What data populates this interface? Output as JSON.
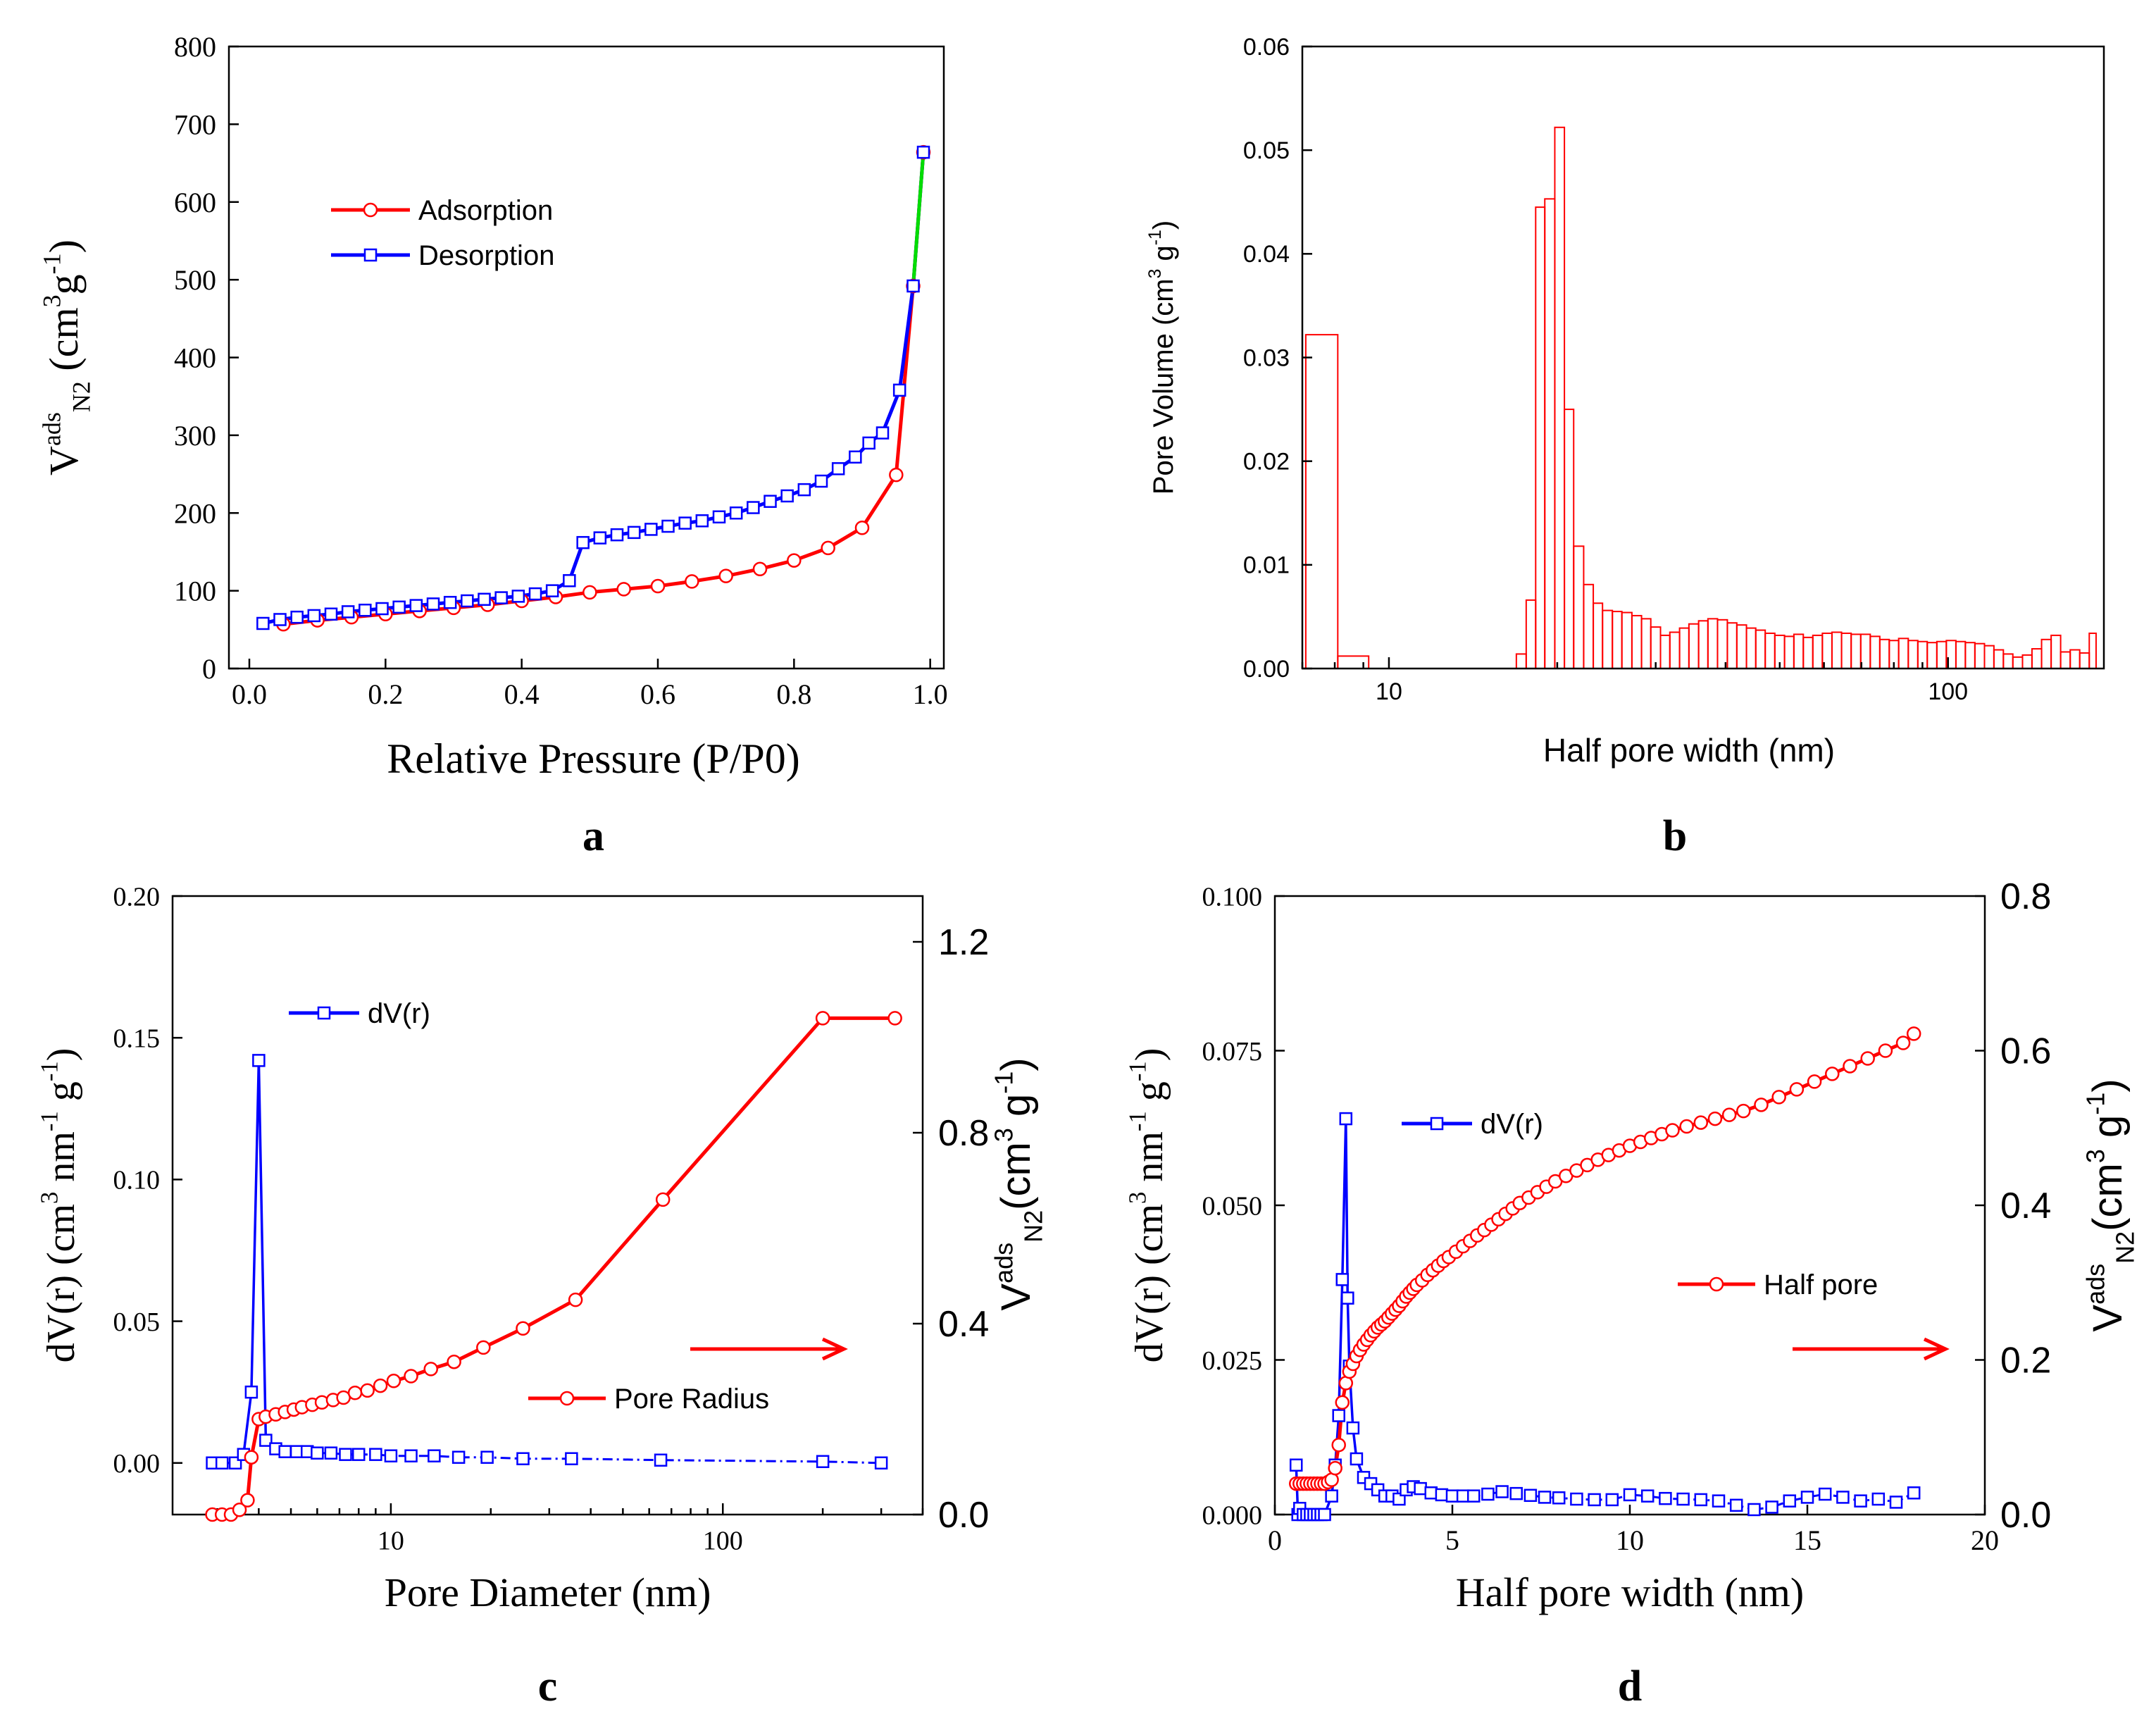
{
  "chart_data": [
    {
      "panel": "a",
      "type": "line",
      "panel_label": "a",
      "xlabel": "Relative Pressure (P/P0)",
      "ylabel": {
        "main": "V",
        "sup": "ads",
        "sub": "N",
        "sub2": "2",
        "unit_open": " (cm",
        "unit_sup": "3",
        "unit_mid": "g",
        "unit_sup2": "-1",
        "unit_close": ")"
      },
      "xlim": [
        -0.03,
        1.02
      ],
      "ylim": [
        0,
        800
      ],
      "xticks": [
        "0.0",
        "0.2",
        "0.4",
        "0.6",
        "0.8",
        "1.0"
      ],
      "yticks": [
        "0",
        "100",
        "200",
        "300",
        "400",
        "500",
        "600",
        "700",
        "800"
      ],
      "legend_position": "upper-left",
      "series": [
        {
          "name": "Adsorption",
          "color": "#ff0000",
          "marker": "circle",
          "x": [
            0.05,
            0.1,
            0.15,
            0.2,
            0.25,
            0.3,
            0.35,
            0.4,
            0.45,
            0.5,
            0.55,
            0.6,
            0.65,
            0.7,
            0.75,
            0.8,
            0.85,
            0.9,
            0.95,
            0.975,
            0.99
          ],
          "y": [
            57,
            62,
            66,
            70,
            74,
            78,
            82,
            87,
            92,
            98,
            102,
            106,
            112,
            119,
            128,
            139,
            155,
            181,
            249,
            492,
            664
          ]
        },
        {
          "name": "Desorption",
          "color": "#0000ff",
          "marker": "square",
          "x": [
            0.99,
            0.975,
            0.955,
            0.93,
            0.91,
            0.89,
            0.865,
            0.84,
            0.815,
            0.79,
            0.765,
            0.74,
            0.715,
            0.69,
            0.665,
            0.64,
            0.615,
            0.59,
            0.565,
            0.54,
            0.515,
            0.49,
            0.47,
            0.445,
            0.42,
            0.395,
            0.37,
            0.345,
            0.32,
            0.295,
            0.27,
            0.245,
            0.22,
            0.195,
            0.17,
            0.145,
            0.12,
            0.095,
            0.07,
            0.045,
            0.02
          ],
          "y": [
            664,
            492,
            358,
            303,
            290,
            272,
            257,
            241,
            230,
            222,
            215,
            207,
            200,
            195,
            190,
            187,
            183,
            179,
            175,
            172,
            168,
            162,
            113,
            100,
            96,
            93,
            91,
            89,
            87,
            85,
            83,
            81,
            79,
            77,
            75,
            73,
            70,
            68,
            66,
            63,
            58
          ]
        }
      ]
    },
    {
      "panel": "b",
      "type": "bar",
      "panel_label": "b",
      "xlabel": "Half pore width (nm)",
      "ylabel": "Pore Volume (cm",
      "ylabel_sup": "3",
      "ylabel_mid": " g",
      "ylabel_sup2": "-1",
      "ylabel_close": ")",
      "xscale": "log",
      "xlim": [
        7,
        190
      ],
      "ylim": [
        0,
        0.06
      ],
      "xticks": [
        "10",
        "100"
      ],
      "yticks": [
        "0.00",
        "0.01",
        "0.02",
        "0.03",
        "0.04",
        "0.05",
        "0.06"
      ],
      "color": "#ff0000",
      "bars": [
        [
          7.1,
          8.1,
          0.0322
        ],
        [
          8.1,
          9.2,
          0.0012
        ],
        [
          9.2,
          16.9,
          0.0
        ],
        [
          16.9,
          17.6,
          0.0014
        ],
        [
          17.6,
          18.3,
          0.0066
        ],
        [
          18.3,
          19.0,
          0.0445
        ],
        [
          19.0,
          19.8,
          0.0453
        ],
        [
          19.8,
          20.6,
          0.0522
        ],
        [
          20.6,
          21.4,
          0.025
        ],
        [
          21.4,
          22.3,
          0.0118
        ],
        [
          22.3,
          23.2,
          0.0081
        ],
        [
          23.2,
          24.1,
          0.0063
        ],
        [
          24.1,
          25.1,
          0.0056
        ],
        [
          25.1,
          26.1,
          0.0055
        ],
        [
          26.1,
          27.2,
          0.0054
        ],
        [
          27.2,
          28.3,
          0.0051
        ],
        [
          28.3,
          29.4,
          0.0048
        ],
        [
          29.4,
          30.6,
          0.004
        ],
        [
          30.6,
          31.8,
          0.0032
        ],
        [
          31.8,
          33.1,
          0.0035
        ],
        [
          33.1,
          34.4,
          0.0039
        ],
        [
          34.4,
          35.8,
          0.0043
        ],
        [
          35.8,
          37.2,
          0.0046
        ],
        [
          37.2,
          38.7,
          0.0048
        ],
        [
          38.7,
          40.3,
          0.0047
        ],
        [
          40.3,
          41.9,
          0.0044
        ],
        [
          41.9,
          43.6,
          0.0042
        ],
        [
          43.6,
          45.3,
          0.0039
        ],
        [
          45.3,
          47.1,
          0.0037
        ],
        [
          47.1,
          49.0,
          0.0034
        ],
        [
          49.0,
          51.0,
          0.0032
        ],
        [
          51.0,
          53.0,
          0.0031
        ],
        [
          53.0,
          55.1,
          0.0033
        ],
        [
          55.1,
          57.3,
          0.003
        ],
        [
          57.3,
          59.6,
          0.0032
        ],
        [
          59.6,
          62.0,
          0.0034
        ],
        [
          62.0,
          64.5,
          0.0035
        ],
        [
          64.5,
          67.1,
          0.0034
        ],
        [
          67.1,
          69.8,
          0.0033
        ],
        [
          69.8,
          72.6,
          0.0033
        ],
        [
          72.6,
          75.5,
          0.0031
        ],
        [
          75.5,
          78.5,
          0.0028
        ],
        [
          78.5,
          81.6,
          0.0027
        ],
        [
          81.6,
          84.9,
          0.0029
        ],
        [
          84.9,
          88.3,
          0.0027
        ],
        [
          88.3,
          91.8,
          0.0026
        ],
        [
          91.8,
          95.5,
          0.0025
        ],
        [
          95.5,
          99.3,
          0.0026
        ],
        [
          99.3,
          103.3,
          0.0027
        ],
        [
          103.3,
          107.4,
          0.0026
        ],
        [
          107.4,
          111.7,
          0.0025
        ],
        [
          111.7,
          116.2,
          0.0024
        ],
        [
          116.2,
          120.8,
          0.0022
        ],
        [
          120.8,
          125.6,
          0.0018
        ],
        [
          125.6,
          130.6,
          0.0014
        ],
        [
          130.6,
          135.9,
          0.0011
        ],
        [
          135.9,
          141.3,
          0.0013
        ],
        [
          141.3,
          147.0,
          0.0019
        ],
        [
          147.0,
          152.9,
          0.0028
        ],
        [
          152.9,
          159.0,
          0.0032
        ],
        [
          159.0,
          165.4,
          0.0016
        ],
        [
          165.4,
          172.0,
          0.0018
        ],
        [
          172.0,
          178.9,
          0.0015
        ],
        [
          178.9,
          184.0,
          0.0034
        ]
      ]
    },
    {
      "panel": "c",
      "type": "line",
      "panel_label": "c",
      "xlabel": "Pore Diameter (nm)",
      "ylabel_left": {
        "main": "dV(r) (cm",
        "sup": "3",
        "mid": " nm",
        "sup2": "-1",
        "mid2": " g",
        "sup3": "-1",
        "close": ")"
      },
      "ylabel_right": {
        "main": "V",
        "sup": "ads",
        "sub": "N",
        "sub2": "2",
        "unit_open": "(cm",
        "unit_sup": "3",
        "unit_mid": " g",
        "unit_sup2": "-1",
        "unit_close": ")"
      },
      "xscale": "log",
      "xlim": [
        2.2,
        400
      ],
      "ylim_left": [
        -0.01,
        0.2
      ],
      "ylim_right": [
        0,
        1.2
      ],
      "xticks": [
        "10",
        "100"
      ],
      "yticks_left": [
        "0.00",
        "0.05",
        "0.10",
        "0.15",
        "0.20"
      ],
      "yticks_right": [
        "0.0",
        "0.4",
        "0.8",
        "1.2"
      ],
      "arrow_direction": "right",
      "series": [
        {
          "name": "dV(r)",
          "color": "#0000ff",
          "marker": "square",
          "axis": "left",
          "x": [
            2.9,
            3.1,
            3.4,
            3.6,
            3.8,
            4.0,
            4.2,
            4.5,
            4.8,
            5.2,
            5.6,
            6.0,
            6.6,
            7.3,
            8.0,
            9.0,
            10.0,
            11.5,
            13.5,
            16.0,
            19.5,
            25.0,
            35.0,
            65.0,
            200.0,
            300.0
          ],
          "y": [
            0.0,
            0.0,
            0.0,
            0.003,
            0.025,
            0.142,
            0.008,
            0.005,
            0.004,
            0.004,
            0.004,
            0.0035,
            0.0035,
            0.003,
            0.003,
            0.003,
            0.0025,
            0.0025,
            0.0025,
            0.002,
            0.002,
            0.0015,
            0.0015,
            0.001,
            0.0005,
            0.0
          ]
        },
        {
          "name": "Pore Radius",
          "color": "#ff0000",
          "marker": "circle",
          "axis": "right",
          "x": [
            2.9,
            3.1,
            3.3,
            3.5,
            3.7,
            3.8,
            4.0,
            4.2,
            4.5,
            4.8,
            5.1,
            5.4,
            5.8,
            6.2,
            6.7,
            7.2,
            7.8,
            8.5,
            9.3,
            10.2,
            11.5,
            13.2,
            15.5,
            19.0,
            25.0,
            36.0,
            66.0,
            200.0,
            330.0
          ],
          "y": [
            0.0,
            0.0,
            0.0,
            0.01,
            0.03,
            0.12,
            0.2,
            0.205,
            0.21,
            0.215,
            0.22,
            0.225,
            0.23,
            0.235,
            0.24,
            0.245,
            0.255,
            0.26,
            0.27,
            0.28,
            0.29,
            0.305,
            0.32,
            0.35,
            0.39,
            0.45,
            0.66,
            1.04,
            1.04
          ]
        }
      ]
    },
    {
      "panel": "d",
      "type": "line",
      "panel_label": "d",
      "xlabel": "Half pore width (nm)",
      "ylabel_left": {
        "main": "dV(r) (cm",
        "sup": "3",
        "mid": " nm",
        "sup2": "-1",
        "mid2": " g",
        "sup3": "-1",
        "close": ")"
      },
      "ylabel_right": {
        "main": "V",
        "sup": "ads",
        "sub": "N",
        "sub2": "2",
        "unit_open": "(cm",
        "unit_sup": "3",
        "unit_mid": " g",
        "unit_sup2": "-1",
        "unit_close": ")"
      },
      "xlim": [
        0,
        20
      ],
      "ylim_left": [
        0,
        0.1
      ],
      "ylim_right": [
        0,
        0.8
      ],
      "xticks": [
        "0",
        "5",
        "10",
        "15",
        "20"
      ],
      "yticks_left": [
        "0.000",
        "0.025",
        "0.050",
        "0.075",
        "0.100"
      ],
      "yticks_right": [
        "0.0",
        "0.2",
        "0.4",
        "0.6",
        "0.8"
      ],
      "arrow_direction": "right",
      "series": [
        {
          "name": "dV(r)",
          "color": "#0000ff",
          "marker": "square",
          "axis": "left",
          "x": [
            0.6,
            0.65,
            0.7,
            0.8,
            0.9,
            1.0,
            1.1,
            1.2,
            1.3,
            1.4,
            1.6,
            1.7,
            1.8,
            1.9,
            2.0,
            2.05,
            2.1,
            2.2,
            2.3,
            2.5,
            2.7,
            2.9,
            3.1,
            3.3,
            3.5,
            3.7,
            3.9,
            4.1,
            4.4,
            4.7,
            5.0,
            5.3,
            5.6,
            6.0,
            6.4,
            6.8,
            7.2,
            7.6,
            8.0,
            8.5,
            9.0,
            9.5,
            10.0,
            10.5,
            11.0,
            11.5,
            12.0,
            12.5,
            13.0,
            13.5,
            14.0,
            14.5,
            15.0,
            15.5,
            16.0,
            16.5,
            17.0,
            17.5,
            18.0
          ],
          "y": [
            0.008,
            0.0,
            0.001,
            0.0,
            0.0,
            0.0,
            0.0,
            0.0,
            0.0,
            0.0,
            0.003,
            0.008,
            0.016,
            0.038,
            0.064,
            0.035,
            0.024,
            0.014,
            0.009,
            0.006,
            0.005,
            0.004,
            0.003,
            0.003,
            0.0025,
            0.004,
            0.0045,
            0.0042,
            0.0035,
            0.0032,
            0.003,
            0.003,
            0.003,
            0.0033,
            0.0037,
            0.0034,
            0.0031,
            0.0028,
            0.0027,
            0.0025,
            0.0024,
            0.0024,
            0.0032,
            0.003,
            0.0026,
            0.0025,
            0.0024,
            0.0022,
            0.0015,
            0.0008,
            0.0012,
            0.0022,
            0.0028,
            0.0033,
            0.0028,
            0.0022,
            0.0025,
            0.002,
            0.0035
          ]
        },
        {
          "name": "Half pore",
          "color": "#ff0000",
          "marker": "circle",
          "axis": "right",
          "x": [
            0.6,
            0.7,
            0.8,
            0.9,
            1.0,
            1.1,
            1.2,
            1.3,
            1.4,
            1.5,
            1.6,
            1.7,
            1.8,
            1.9,
            2.0,
            2.1,
            2.2,
            2.3,
            2.4,
            2.5,
            2.6,
            2.7,
            2.8,
            2.9,
            3.0,
            3.1,
            3.2,
            3.3,
            3.4,
            3.5,
            3.6,
            3.7,
            3.8,
            3.9,
            4.0,
            4.15,
            4.3,
            4.45,
            4.6,
            4.75,
            4.9,
            5.1,
            5.3,
            5.5,
            5.7,
            5.9,
            6.1,
            6.3,
            6.5,
            6.7,
            6.9,
            7.15,
            7.4,
            7.65,
            7.9,
            8.2,
            8.5,
            8.8,
            9.1,
            9.4,
            9.7,
            10.0,
            10.3,
            10.6,
            10.9,
            11.2,
            11.6,
            12.0,
            12.4,
            12.8,
            13.2,
            13.7,
            14.2,
            14.7,
            15.2,
            15.7,
            16.2,
            16.7,
            17.2,
            17.7,
            18.0
          ],
          "y": [
            0.04,
            0.04,
            0.04,
            0.04,
            0.04,
            0.04,
            0.04,
            0.04,
            0.04,
            0.042,
            0.045,
            0.06,
            0.09,
            0.145,
            0.17,
            0.185,
            0.195,
            0.205,
            0.213,
            0.22,
            0.226,
            0.232,
            0.237,
            0.242,
            0.246,
            0.25,
            0.255,
            0.26,
            0.265,
            0.27,
            0.276,
            0.282,
            0.287,
            0.292,
            0.297,
            0.303,
            0.31,
            0.316,
            0.322,
            0.328,
            0.333,
            0.34,
            0.347,
            0.354,
            0.361,
            0.368,
            0.375,
            0.382,
            0.389,
            0.396,
            0.403,
            0.41,
            0.417,
            0.424,
            0.431,
            0.438,
            0.445,
            0.452,
            0.459,
            0.465,
            0.471,
            0.477,
            0.482,
            0.487,
            0.492,
            0.497,
            0.502,
            0.507,
            0.512,
            0.517,
            0.522,
            0.53,
            0.54,
            0.55,
            0.56,
            0.57,
            0.58,
            0.59,
            0.6,
            0.61,
            0.622
          ]
        }
      ]
    }
  ]
}
